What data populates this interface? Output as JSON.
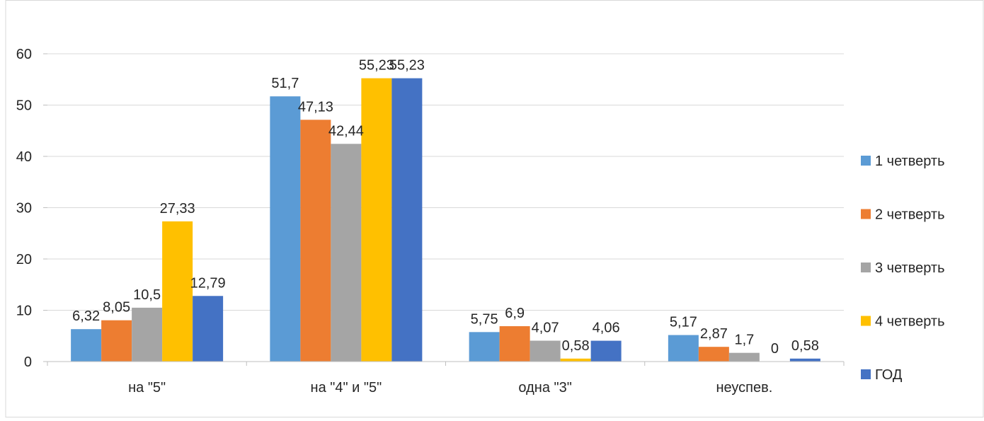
{
  "chart_data": {
    "type": "bar",
    "categories": [
      "на \"5\"",
      "на \"4\" и \"5\"",
      "одна \"3\"",
      "неуспев."
    ],
    "series": [
      {
        "name": "1 четверть",
        "color": "#5B9BD5",
        "values": [
          6.32,
          51.7,
          5.75,
          5.17
        ],
        "labels": [
          "6,32",
          "51,7",
          "5,75",
          "5,17"
        ]
      },
      {
        "name": "2 четверть",
        "color": "#ED7D31",
        "values": [
          8.05,
          47.13,
          6.9,
          2.87
        ],
        "labels": [
          "8,05",
          "47,13",
          "6,9",
          "2,87"
        ]
      },
      {
        "name": "3 четверть",
        "color": "#A5A5A5",
        "values": [
          10.5,
          42.44,
          4.07,
          1.7
        ],
        "labels": [
          "10,5",
          "42,44",
          "4,07",
          "1,7"
        ]
      },
      {
        "name": "4 четверть",
        "color": "#FFC000",
        "values": [
          27.33,
          55.23,
          0.58,
          0
        ],
        "labels": [
          "27,33",
          "55,23",
          "0,58",
          "0"
        ]
      },
      {
        "name": "ГОД",
        "color": "#4472C4",
        "values": [
          12.79,
          55.23,
          4.06,
          0.58
        ],
        "labels": [
          "12,79",
          "55,23",
          "4,06",
          "0,58"
        ]
      }
    ],
    "y_ticks": [
      "0",
      "10",
      "20",
      "30",
      "40",
      "50",
      "60"
    ],
    "ylim": [
      0,
      60
    ],
    "grid": true,
    "legend_position": "right"
  }
}
